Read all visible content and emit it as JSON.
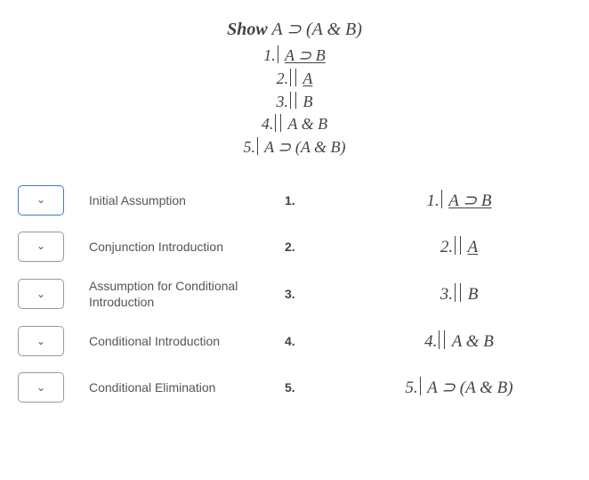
{
  "colors": {
    "text": "#444444",
    "background": "#ffffff",
    "dropdown_border": "#999999",
    "dropdown_active_border": "#3a7bd5",
    "label_text": "#555555"
  },
  "typography": {
    "serif_family": "Georgia, Times New Roman, serif",
    "sans_family": "Arial, Helvetica, sans-serif",
    "title_fontsize": 20,
    "proof_fontsize": 18,
    "label_fontsize": 14
  },
  "top_proof": {
    "show_prefix": "Show",
    "show_formula": "A ⊃ (A & B)",
    "lines": [
      {
        "n": "1.",
        "bars": 1,
        "formula": "A ⊃ B",
        "underlined": true
      },
      {
        "n": "2.",
        "bars": 2,
        "formula": "A",
        "underlined": true
      },
      {
        "n": "3.",
        "bars": 2,
        "formula": "B",
        "underlined": false
      },
      {
        "n": "4.",
        "bars": 2,
        "formula": "A & B",
        "underlined": false
      },
      {
        "n": "5.",
        "bars": 1,
        "formula": "A ⊃ (A & B)",
        "underlined": false
      }
    ]
  },
  "rows": [
    {
      "dropdown_active": true,
      "rule": "Initial Assumption",
      "num": "1.",
      "proof": {
        "n": "1.",
        "bars": 1,
        "formula": "A ⊃ B",
        "underlined": true
      }
    },
    {
      "dropdown_active": false,
      "rule": "Conjunction Introduction",
      "num": "2.",
      "proof": {
        "n": "2.",
        "bars": 2,
        "formula": "A",
        "underlined": true
      }
    },
    {
      "dropdown_active": false,
      "rule": "Assumption for Conditional Introduction",
      "num": "3.",
      "proof": {
        "n": "3.",
        "bars": 2,
        "formula": "B",
        "underlined": false
      }
    },
    {
      "dropdown_active": false,
      "rule": "Conditional Introduction",
      "num": "4.",
      "proof": {
        "n": "4.",
        "bars": 2,
        "formula": "A & B",
        "underlined": false
      }
    },
    {
      "dropdown_active": false,
      "rule": "Conditional Elimination",
      "num": "5.",
      "proof": {
        "n": "5.",
        "bars": 1,
        "formula": "A ⊃ (A & B)",
        "underlined": false
      }
    }
  ]
}
